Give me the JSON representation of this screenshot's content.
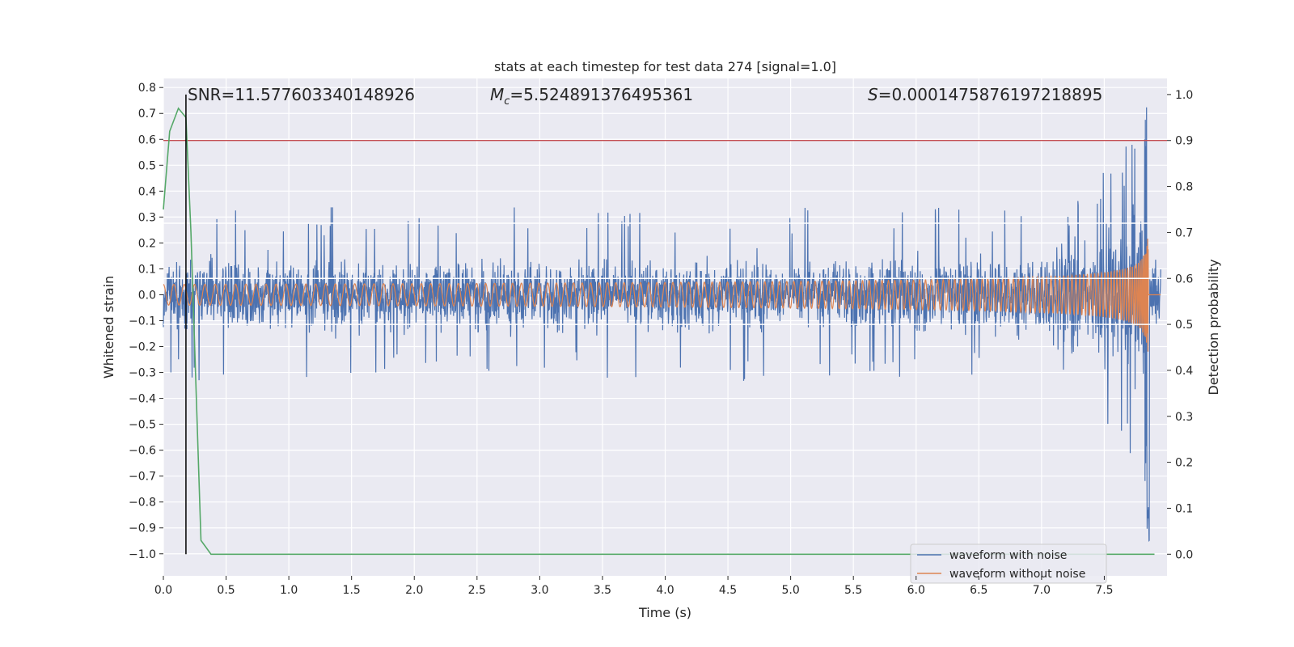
{
  "chart_data": {
    "type": "line",
    "title": "stats at each timestep for test data 274 [signal=1.0]",
    "xlabel": "Time (s)",
    "ylabel": "Whitened strain",
    "y2label": "Detection probability",
    "xlim": [
      0.0,
      8.0
    ],
    "ylim": [
      -1.085,
      0.835
    ],
    "y2lim": [
      -0.047,
      1.035
    ],
    "xticks": [
      "0.0",
      "0.5",
      "1.0",
      "1.5",
      "2.0",
      "2.5",
      "3.0",
      "3.5",
      "4.0",
      "4.5",
      "5.0",
      "5.5",
      "6.0",
      "6.5",
      "7.0",
      "7.5"
    ],
    "yticks": [
      "0.8",
      "0.7",
      "0.6",
      "0.5",
      "0.4",
      "0.3",
      "0.2",
      "0.1",
      "0.0",
      "−0.1",
      "−0.2",
      "−0.3",
      "−0.4",
      "−0.5",
      "−0.6",
      "−0.7",
      "−0.8",
      "−0.9",
      "−1.0"
    ],
    "y2ticks": [
      "1.0",
      "0.9",
      "0.8",
      "0.7",
      "0.6",
      "0.5",
      "0.4",
      "0.3",
      "0.2",
      "0.1",
      "0.0"
    ],
    "annotations": {
      "snr": "SNR=11.577603340148926",
      "mc_symbol": "M",
      "mc_sub": "c",
      "mc_value": "=5.524891376495361",
      "s_symbol": "S",
      "s_value": "=0.0001475876197218895"
    },
    "legend": {
      "location": "lower-right",
      "entries": [
        "waveform with noise",
        "waveform without noise"
      ]
    },
    "series": [
      {
        "name": "waveform with noise",
        "color": "#4c72b0",
        "envelope_start": 0.3,
        "envelope_peak": 0.75,
        "peak_time": 7.84
      },
      {
        "name": "waveform without noise",
        "color": "#dd8452",
        "amplitude_start": 0.04,
        "amplitude_peak": 0.68,
        "merger_time": 7.85
      },
      {
        "name": "detection probability",
        "color": "#55a868",
        "axis": "right",
        "x": [
          0.0,
          0.05,
          0.12,
          0.18,
          0.22,
          0.3,
          0.38,
          0.45,
          7.9
        ],
        "values": [
          0.75,
          0.92,
          0.97,
          0.95,
          0.7,
          0.03,
          0.0,
          0.0,
          0.0
        ]
      }
    ],
    "threshold_line": {
      "value": 0.9,
      "axis": "right",
      "color": "#c44e52"
    },
    "marker_line": {
      "x": 0.18,
      "color": "#000000"
    }
  }
}
